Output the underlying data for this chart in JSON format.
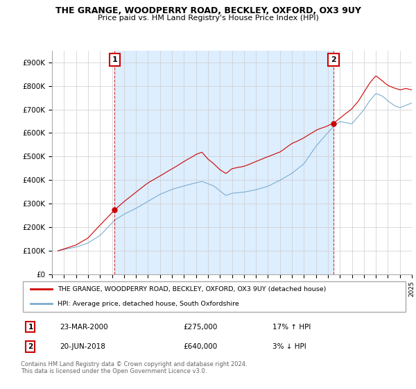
{
  "title": "THE GRANGE, WOODPERRY ROAD, BECKLEY, OXFORD, OX3 9UY",
  "subtitle": "Price paid vs. HM Land Registry's House Price Index (HPI)",
  "legend_line1": "THE GRANGE, WOODPERRY ROAD, BECKLEY, OXFORD, OX3 9UY (detached house)",
  "legend_line2": "HPI: Average price, detached house, South Oxfordshire",
  "annotation1_label": "1",
  "annotation1_date": "23-MAR-2000",
  "annotation1_price": "£275,000",
  "annotation1_hpi": "17% ↑ HPI",
  "annotation2_label": "2",
  "annotation2_date": "20-JUN-2018",
  "annotation2_price": "£640,000",
  "annotation2_hpi": "3% ↓ HPI",
  "footer": "Contains HM Land Registry data © Crown copyright and database right 2024.\nThis data is licensed under the Open Government Licence v3.0.",
  "red_color": "#cc0000",
  "blue_color": "#7aadcf",
  "shade_color": "#ddeeff",
  "annotation_box_color": "#cc0000",
  "ylim": [
    0,
    950000
  ],
  "yticks": [
    0,
    100000,
    200000,
    300000,
    400000,
    500000,
    600000,
    700000,
    800000,
    900000
  ],
  "ytick_labels": [
    "£0",
    "£100K",
    "£200K",
    "£300K",
    "£400K",
    "£500K",
    "£600K",
    "£700K",
    "£800K",
    "£900K"
  ],
  "sale1_x": 2000.23,
  "sale1_y": 275000,
  "sale2_x": 2018.47,
  "sale2_y": 640000,
  "xlim_start": 1995.5,
  "xlim_end": 2025.0
}
